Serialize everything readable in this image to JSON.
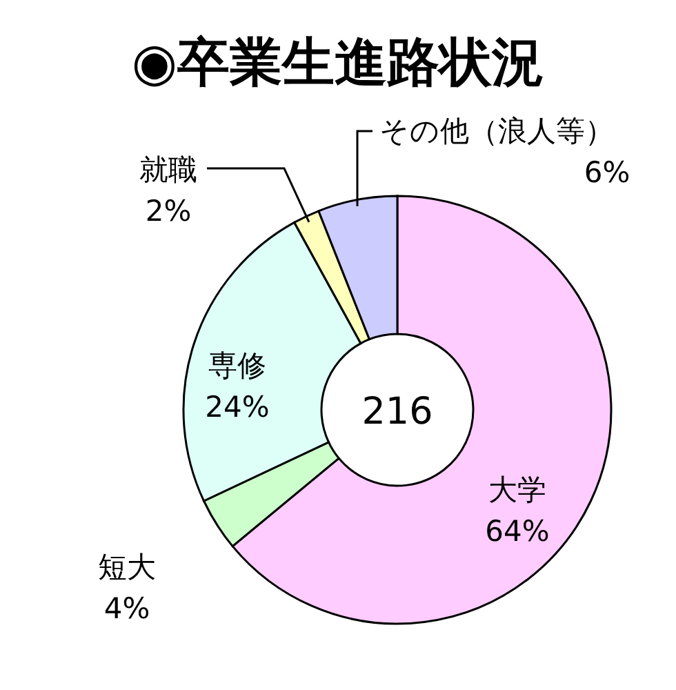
{
  "chart_data": {
    "type": "donut",
    "title": "◉卒業生進路状況",
    "categories": [
      "大学",
      "短大",
      "専修",
      "就職",
      "その他（浪人等）"
    ],
    "values": [
      64,
      4,
      24,
      2,
      6
    ],
    "value_labels": [
      "64%",
      "4%",
      "24%",
      "2%",
      "6%"
    ],
    "colors": [
      "#ffccff",
      "#ccffcc",
      "#ddfff8",
      "#ffffbb",
      "#ccccff"
    ],
    "annotations": [
      "216"
    ]
  }
}
